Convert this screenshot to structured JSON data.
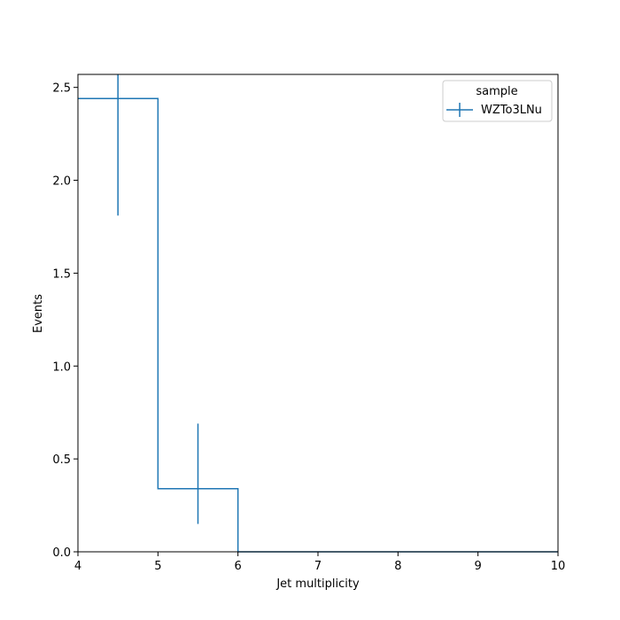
{
  "chart_data": {
    "type": "step",
    "title": "",
    "xlabel": "Jet multiplicity",
    "ylabel": "Events",
    "xlim": [
      4,
      10
    ],
    "ylim": [
      0,
      2.57
    ],
    "x_ticks": [
      "4",
      "5",
      "6",
      "7",
      "8",
      "9",
      "10"
    ],
    "y_ticks": [
      "0.0",
      "0.5",
      "1.0",
      "1.5",
      "2.0",
      "2.5"
    ],
    "grid": false,
    "legend": {
      "title": "sample",
      "placement": "top-right",
      "entries": [
        "WZTo3LNu"
      ]
    },
    "series": [
      {
        "name": "WZTo3LNu",
        "color": "#1f77b4",
        "bin_edges": [
          4,
          5,
          6,
          7,
          8,
          9,
          10
        ],
        "values": [
          2.44,
          0.34,
          0,
          0,
          0,
          0
        ],
        "err_low": [
          1.81,
          0.15,
          null,
          null,
          null,
          null
        ],
        "err_high": [
          2.57,
          0.69,
          null,
          null,
          null,
          null
        ]
      }
    ]
  }
}
